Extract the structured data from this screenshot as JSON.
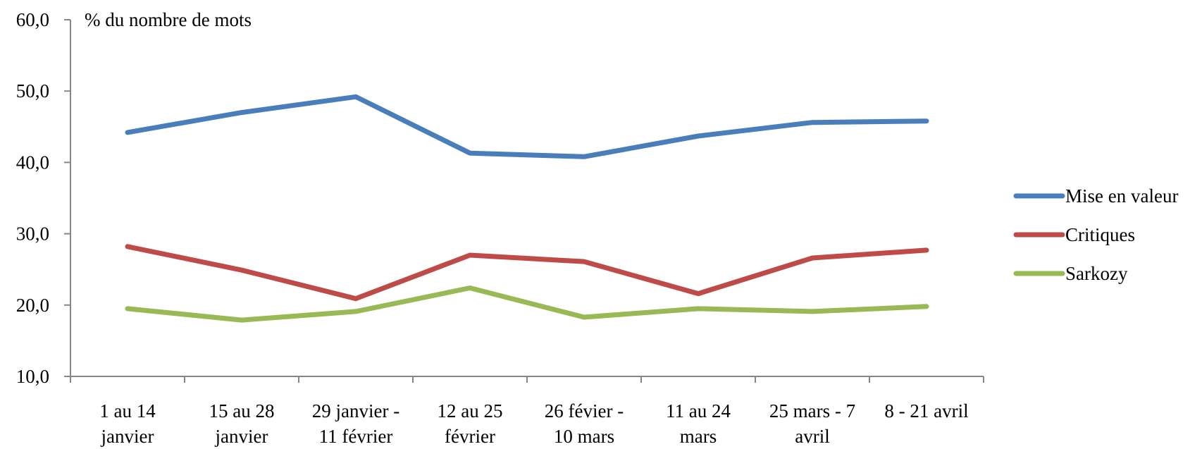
{
  "chart_data": {
    "type": "line",
    "ylabel": "% du nombre de mots",
    "ylim": [
      10,
      60
    ],
    "yticks": [
      "10,0",
      "20,0",
      "30,0",
      "40,0",
      "50,0",
      "60,0"
    ],
    "categories": [
      [
        "1 au 14",
        "janvier"
      ],
      [
        "15 au 28",
        "janvier"
      ],
      [
        "29 janvier -",
        "11 février"
      ],
      [
        "12 au 25",
        "février"
      ],
      [
        "26 févier -",
        "10 mars"
      ],
      [
        "11 au 24",
        "mars"
      ],
      [
        "25 mars - 7",
        "avril"
      ],
      [
        "8 - 21 avril"
      ]
    ],
    "series": [
      {
        "name": "Mise en valeur",
        "color": "#4A7EBB",
        "values": [
          44.2,
          47.0,
          49.2,
          41.3,
          40.8,
          43.7,
          45.6,
          45.8
        ]
      },
      {
        "name": "Critiques",
        "color": "#BE4B48",
        "values": [
          28.2,
          24.9,
          20.9,
          27.0,
          26.1,
          21.6,
          26.6,
          27.7
        ]
      },
      {
        "name": "Sarkozy",
        "color": "#98B954",
        "values": [
          19.5,
          17.9,
          19.1,
          22.4,
          18.3,
          19.5,
          19.1,
          19.8
        ]
      }
    ],
    "grid": false,
    "legend": "right"
  }
}
